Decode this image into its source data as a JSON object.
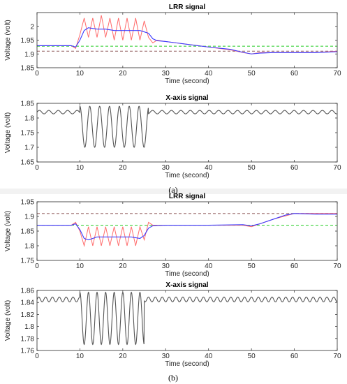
{
  "figure": {
    "captions": [
      "(a)",
      "(b)"
    ]
  },
  "colors": {
    "raw": "#ff6b6b",
    "filtered": "#3a3aff",
    "upper_ref": "#9a6a6a",
    "lower_ref": "#3bd13b",
    "x_signal": "#555555"
  },
  "chart_data": [
    {
      "id": "a-lrr",
      "type": "line",
      "title": "LRR signal",
      "xlabel": "Time (second)",
      "ylabel": "Voltage (volt)",
      "xlim": [
        0,
        70
      ],
      "ylim": [
        1.85,
        2.05
      ],
      "xticks": [
        "0",
        "10",
        "20",
        "30",
        "40",
        "50",
        "60",
        "70"
      ],
      "yticks": [
        "1.85",
        "1.9",
        "1.95",
        "2"
      ],
      "grid": false,
      "series": [
        {
          "role": "raw",
          "color": "#ff6b6b",
          "x": [
            0,
            8,
            9,
            10,
            11,
            12,
            13,
            14,
            15,
            16,
            17,
            18,
            19,
            20,
            21,
            22,
            23,
            24,
            25,
            26,
            27,
            28,
            30,
            35,
            40,
            45,
            48,
            50,
            52,
            55,
            60,
            65,
            70
          ],
          "y": [
            1.93,
            1.93,
            1.92,
            1.97,
            2.03,
            1.96,
            2.03,
            1.96,
            2.04,
            1.96,
            2.03,
            1.95,
            2.03,
            1.95,
            2.03,
            1.95,
            2.03,
            1.95,
            2.02,
            1.96,
            1.94,
            1.95,
            1.945,
            1.935,
            1.925,
            1.915,
            1.905,
            1.9,
            1.905,
            1.905,
            1.905,
            1.905,
            1.91
          ]
        },
        {
          "role": "filtered",
          "color": "#3a3aff",
          "x": [
            0,
            8,
            9,
            10,
            11,
            12,
            14,
            16,
            18,
            20,
            22,
            24,
            26,
            27,
            28,
            30,
            35,
            40,
            45,
            48,
            50,
            52,
            55,
            60,
            65,
            70
          ],
          "y": [
            1.93,
            1.93,
            1.925,
            1.95,
            1.985,
            1.995,
            1.99,
            1.99,
            1.985,
            1.985,
            1.985,
            1.985,
            1.975,
            1.955,
            1.948,
            1.945,
            1.935,
            1.925,
            1.917,
            1.906,
            1.9,
            1.903,
            1.905,
            1.905,
            1.905,
            1.908
          ]
        },
        {
          "role": "upper_ref",
          "color": "#9a6a6a",
          "dash": "4,3",
          "x": [
            0,
            70
          ],
          "y": [
            1.91,
            1.91
          ]
        },
        {
          "role": "lower_ref",
          "color": "#3bd13b",
          "dash": "4,3",
          "x": [
            0,
            70
          ],
          "y": [
            1.928,
            1.928
          ]
        }
      ]
    },
    {
      "id": "a-x",
      "type": "line",
      "title": "X-axis signal",
      "xlabel": "Time (second)",
      "ylabel": "Voltage (volt)",
      "xlim": [
        0,
        70
      ],
      "ylim": [
        1.65,
        1.85
      ],
      "xticks": [
        "0",
        "10",
        "20",
        "30",
        "40",
        "50",
        "60",
        "70"
      ],
      "yticks": [
        "1.65",
        "1.7",
        "1.75",
        "1.8",
        "1.85"
      ],
      "grid": false,
      "series": [
        {
          "role": "x_signal",
          "color": "#555555",
          "base": 1.82,
          "ripple": 0.006,
          "ripple_period": 2.2,
          "burst": {
            "start": 10,
            "end": 26,
            "min": 1.7,
            "max": 1.84,
            "period": 2.3
          }
        }
      ]
    },
    {
      "id": "b-lrr",
      "type": "line",
      "title": "LRR signal",
      "xlabel": "Time (second)",
      "ylabel": "Voltage (volt)",
      "xlim": [
        0,
        70
      ],
      "ylim": [
        1.75,
        1.95
      ],
      "xticks": [
        "0",
        "10",
        "20",
        "30",
        "40",
        "50",
        "60",
        "70"
      ],
      "yticks": [
        "1.75",
        "1.8",
        "1.85",
        "1.9",
        "1.95"
      ],
      "grid": false,
      "series": [
        {
          "role": "raw",
          "color": "#ff6b6b",
          "x": [
            0,
            8,
            9,
            10,
            11,
            12,
            13,
            14,
            15,
            16,
            17,
            18,
            19,
            20,
            21,
            22,
            23,
            24,
            25,
            26,
            27,
            30,
            40,
            48,
            50,
            52,
            55,
            60,
            65,
            70
          ],
          "y": [
            1.87,
            1.87,
            1.88,
            1.85,
            1.8,
            1.865,
            1.8,
            1.865,
            1.8,
            1.865,
            1.8,
            1.865,
            1.8,
            1.865,
            1.8,
            1.865,
            1.8,
            1.865,
            1.82,
            1.88,
            1.87,
            1.87,
            1.87,
            1.87,
            1.865,
            1.875,
            1.89,
            1.91,
            1.91,
            1.91
          ]
        },
        {
          "role": "filtered",
          "color": "#3a3aff",
          "x": [
            0,
            8,
            9,
            10,
            11,
            12,
            14,
            16,
            18,
            20,
            22,
            24,
            25,
            26,
            27,
            30,
            40,
            48,
            50,
            52,
            55,
            58,
            60,
            65,
            70
          ],
          "y": [
            1.87,
            1.87,
            1.875,
            1.855,
            1.825,
            1.82,
            1.83,
            1.83,
            1.83,
            1.83,
            1.83,
            1.825,
            1.835,
            1.86,
            1.868,
            1.87,
            1.87,
            1.872,
            1.868,
            1.875,
            1.89,
            1.905,
            1.91,
            1.908,
            1.908
          ]
        },
        {
          "role": "upper_ref",
          "color": "#9a6a6a",
          "dash": "4,3",
          "x": [
            0,
            70
          ],
          "y": [
            1.91,
            1.91
          ]
        },
        {
          "role": "lower_ref",
          "color": "#3bd13b",
          "dash": "4,3",
          "x": [
            0,
            70
          ],
          "y": [
            1.87,
            1.87
          ]
        }
      ]
    },
    {
      "id": "b-x",
      "type": "line",
      "title": "X-axis signal",
      "xlabel": "Time (second)",
      "ylabel": "Voltage (volt)",
      "xlim": [
        0,
        70
      ],
      "ylim": [
        1.76,
        1.86
      ],
      "xticks": [
        "0",
        "10",
        "20",
        "30",
        "40",
        "50",
        "60",
        "70"
      ],
      "yticks": [
        "1.76",
        "1.78",
        "1.8",
        "1.82",
        "1.84",
        "1.86"
      ],
      "grid": false,
      "series": [
        {
          "role": "x_signal",
          "color": "#555555",
          "base": 1.845,
          "ripple": 0.004,
          "ripple_period": 1.6,
          "burst": {
            "start": 10,
            "end": 25,
            "min": 1.77,
            "max": 1.857,
            "period": 2.0
          }
        }
      ]
    }
  ]
}
